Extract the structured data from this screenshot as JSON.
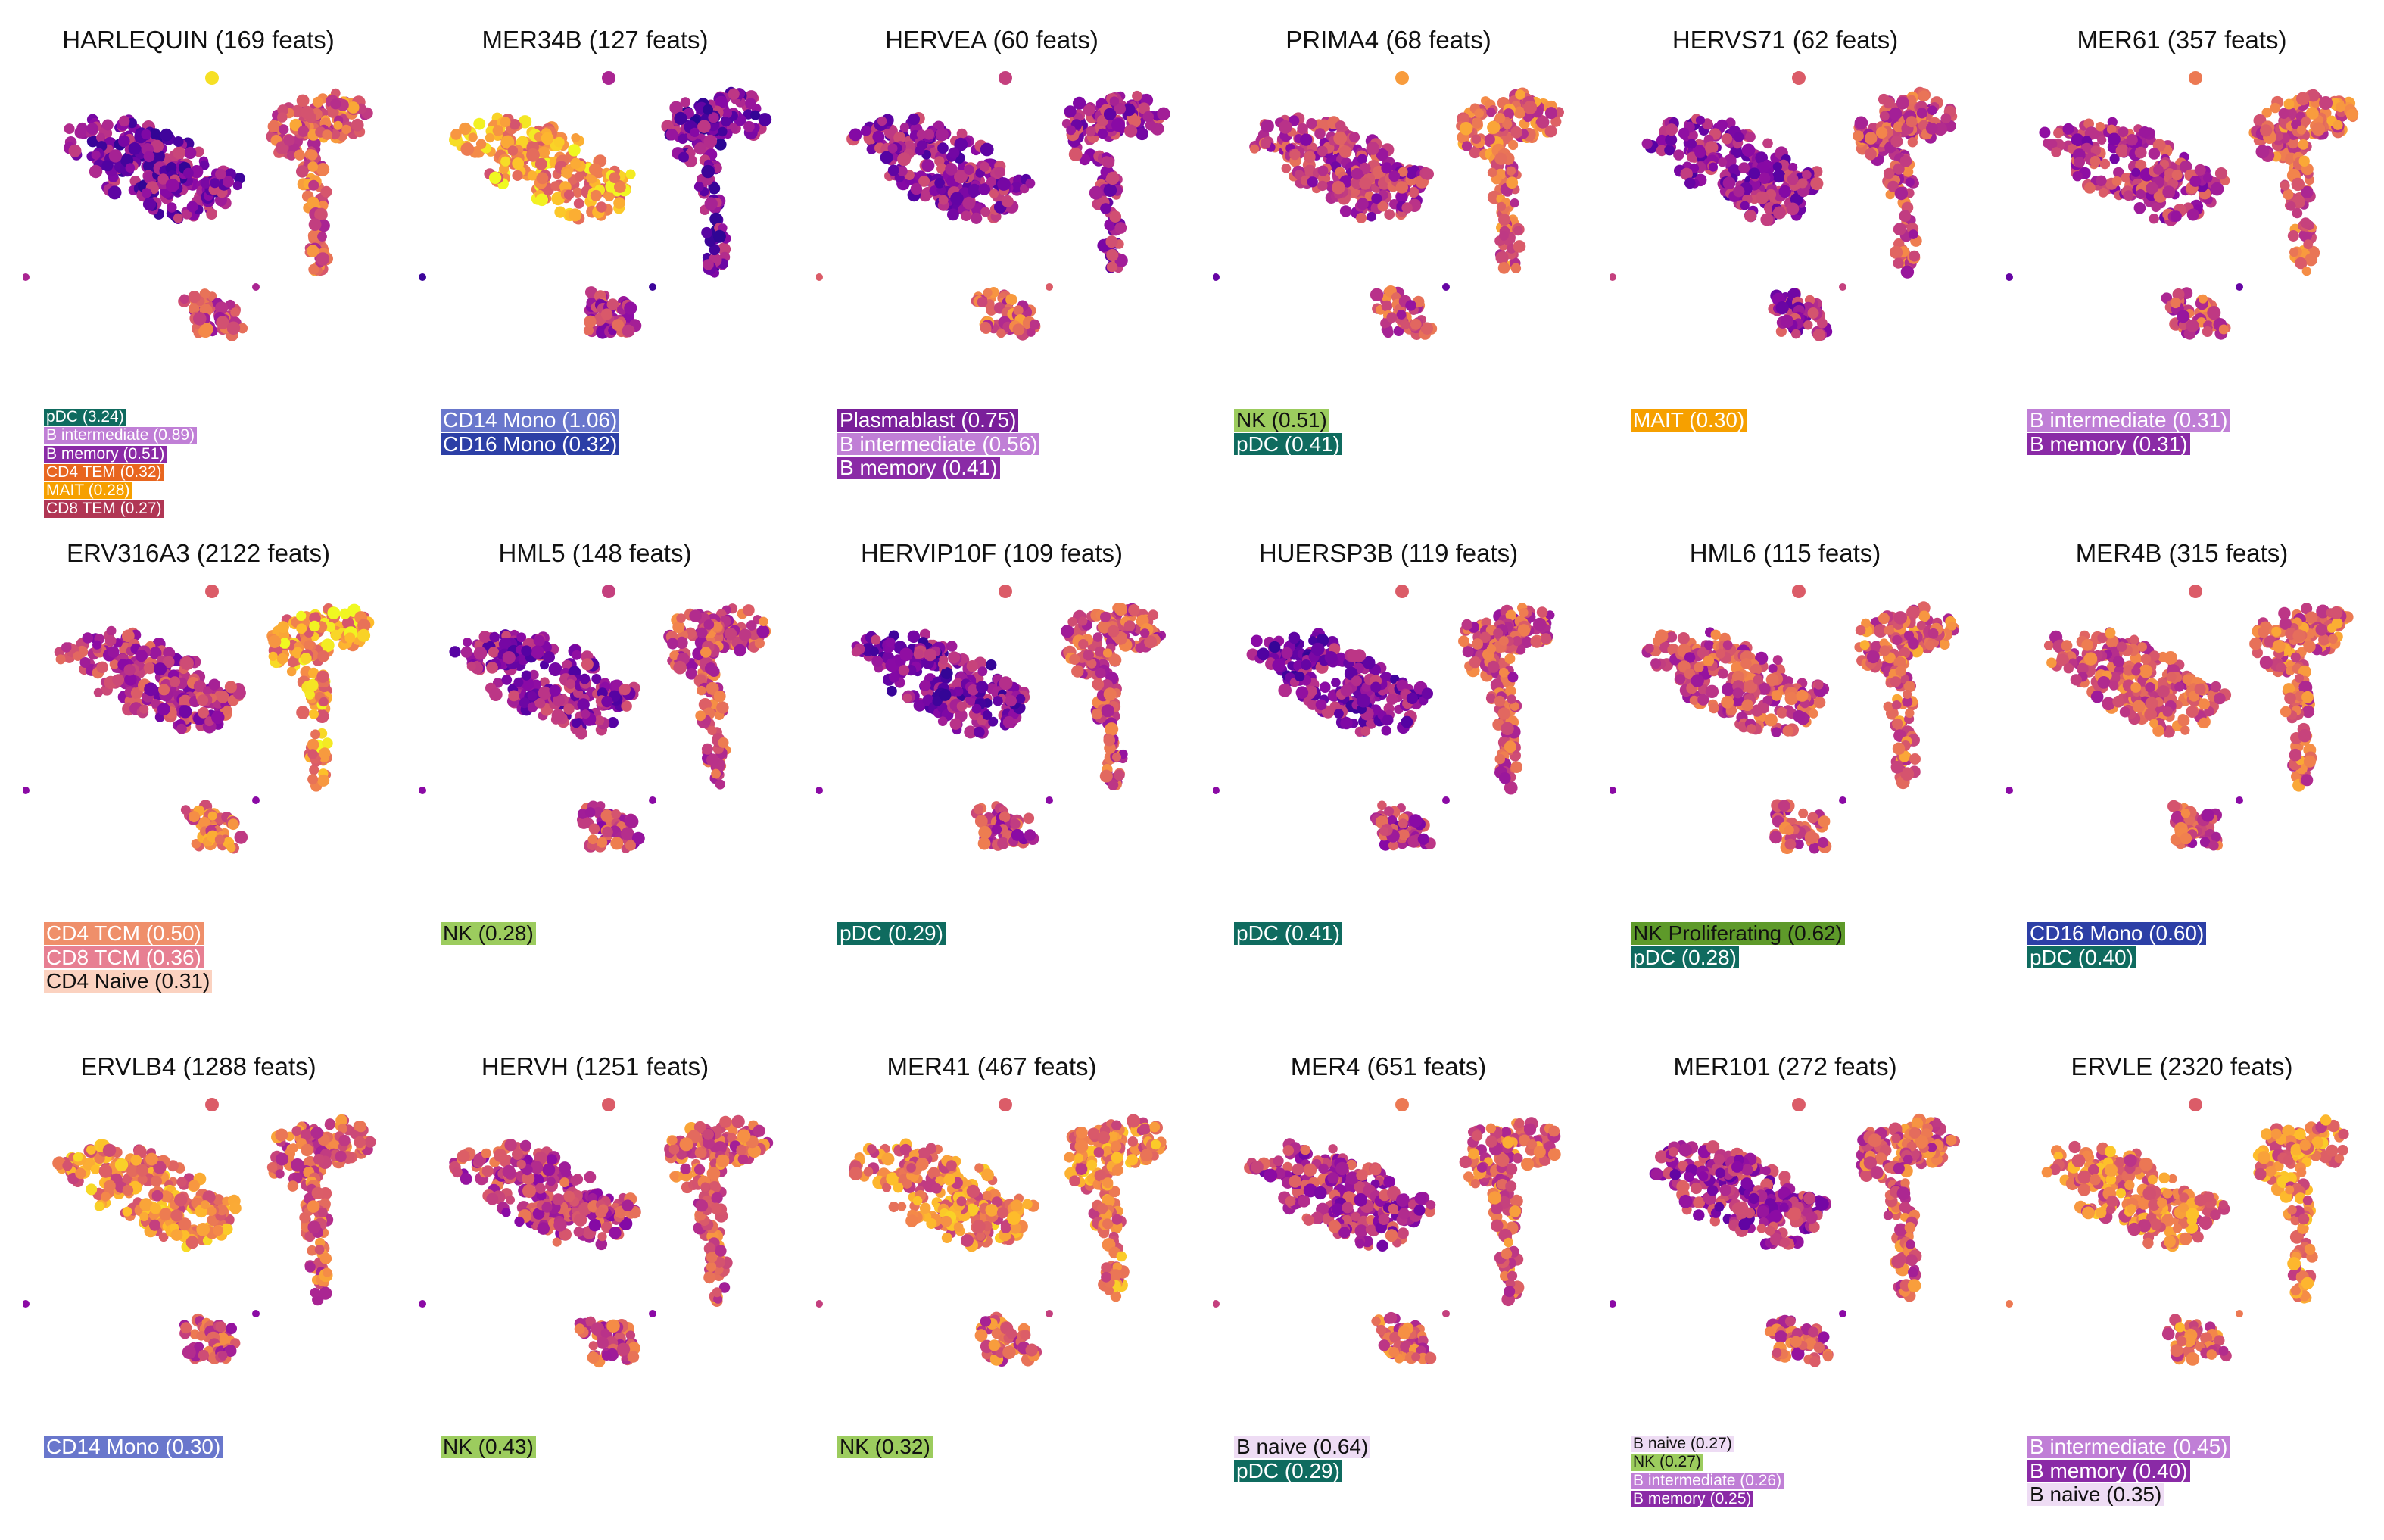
{
  "colors": {
    "pDC": "#0f6b5f",
    "B intermediate": "#c07fd6",
    "B memory": "#8a2aa6",
    "B naive": "#eedcf4",
    "CD4 TEM": "#e8661f",
    "MAIT": "#f6a000",
    "CD8 TEM": "#b03654",
    "CD14 Mono": "#6977cc",
    "CD16 Mono": "#2c3fa6",
    "Plasmablast": "#7a1f9a",
    "NK": "#9ccc5e",
    "NK Proliferating": "#5e9a2a",
    "CD4 TCM": "#ef8f6a",
    "CD8 TCM": "#e77f92",
    "CD4 Naive": "#fbd2c0"
  },
  "dark_text_types": [
    "NK",
    "NK Proliferating",
    "CD4 Naive",
    "B naive"
  ],
  "colormap": "plasma",
  "panels": [
    {
      "title": "HARLEQUIN (169 feats)",
      "small_labels": true,
      "labels": [
        {
          "type": "pDC",
          "text": "pDC (3.24)"
        },
        {
          "type": "B intermediate",
          "text": "B intermediate (0.89)"
        },
        {
          "type": "B memory",
          "text": "B memory (0.51)"
        },
        {
          "type": "CD4 TEM",
          "text": "CD4 TEM (0.32)"
        },
        {
          "type": "MAIT",
          "text": "MAIT (0.28)"
        },
        {
          "type": "CD8 TEM",
          "text": "CD8 TEM (0.27)"
        }
      ]
    },
    {
      "title": "MER34B (127 feats)",
      "labels": [
        {
          "type": "CD14 Mono",
          "text": "CD14 Mono (1.06)"
        },
        {
          "type": "CD16 Mono",
          "text": "CD16 Mono (0.32)"
        }
      ]
    },
    {
      "title": "HERVEA (60 feats)",
      "labels": [
        {
          "type": "Plasmablast",
          "text": "Plasmablast (0.75)"
        },
        {
          "type": "B intermediate",
          "text": "B intermediate (0.56)"
        },
        {
          "type": "B memory",
          "text": "B memory (0.41)"
        }
      ]
    },
    {
      "title": "PRIMA4 (68 feats)",
      "labels": [
        {
          "type": "NK",
          "text": "NK (0.51)"
        },
        {
          "type": "pDC",
          "text": "pDC (0.41)"
        }
      ]
    },
    {
      "title": "HERVS71 (62 feats)",
      "labels": [
        {
          "type": "MAIT",
          "text": "MAIT (0.30)"
        }
      ]
    },
    {
      "title": "MER61 (357 feats)",
      "labels": [
        {
          "type": "B intermediate",
          "text": "B intermediate (0.31)"
        },
        {
          "type": "B memory",
          "text": "B memory (0.31)"
        }
      ]
    },
    {
      "title": "ERV316A3 (2122 feats)",
      "labels": [
        {
          "type": "CD4 TCM",
          "text": "CD4 TCM (0.50)"
        },
        {
          "type": "CD8 TCM",
          "text": "CD8 TCM (0.36)"
        },
        {
          "type": "CD4 Naive",
          "text": "CD4 Naive (0.31)"
        }
      ]
    },
    {
      "title": "HML5 (148 feats)",
      "labels": [
        {
          "type": "NK",
          "text": "NK (0.28)"
        }
      ]
    },
    {
      "title": "HERVIP10F (109 feats)",
      "labels": [
        {
          "type": "pDC",
          "text": "pDC (0.29)"
        }
      ]
    },
    {
      "title": "HUERSP3B (119 feats)",
      "labels": [
        {
          "type": "pDC",
          "text": "pDC (0.41)"
        }
      ]
    },
    {
      "title": "HML6 (115 feats)",
      "labels": [
        {
          "type": "NK Proliferating",
          "text": "NK Proliferating (0.62)"
        },
        {
          "type": "pDC",
          "text": "pDC (0.28)"
        }
      ]
    },
    {
      "title": "MER4B (315 feats)",
      "labels": [
        {
          "type": "CD16 Mono",
          "text": "CD16 Mono (0.60)"
        },
        {
          "type": "pDC",
          "text": "pDC (0.40)"
        }
      ]
    },
    {
      "title": "ERVLB4 (1288 feats)",
      "labels": [
        {
          "type": "CD14 Mono",
          "text": "CD14 Mono (0.30)"
        }
      ]
    },
    {
      "title": "HERVH (1251 feats)",
      "labels": [
        {
          "type": "NK",
          "text": "NK (0.43)"
        }
      ]
    },
    {
      "title": "MER41 (467 feats)",
      "labels": [
        {
          "type": "NK",
          "text": "NK (0.32)"
        }
      ]
    },
    {
      "title": "MER4 (651 feats)",
      "labels": [
        {
          "type": "B naive",
          "text": "B naive (0.64)"
        },
        {
          "type": "pDC",
          "text": "pDC (0.29)"
        }
      ]
    },
    {
      "title": "MER101 (272 feats)",
      "small_labels": true,
      "labels": [
        {
          "type": "B naive",
          "text": "B naive (0.27)"
        },
        {
          "type": "NK",
          "text": "NK (0.27)"
        },
        {
          "type": "B intermediate",
          "text": "B intermediate (0.26)"
        },
        {
          "type": "B memory",
          "text": "B memory (0.25)"
        }
      ]
    },
    {
      "title": "ERVLE (2320 feats)",
      "labels": [
        {
          "type": "B intermediate",
          "text": "B intermediate (0.45)"
        },
        {
          "type": "B memory",
          "text": "B memory (0.40)"
        },
        {
          "type": "B naive",
          "text": "B naive (0.35)"
        }
      ]
    }
  ]
}
